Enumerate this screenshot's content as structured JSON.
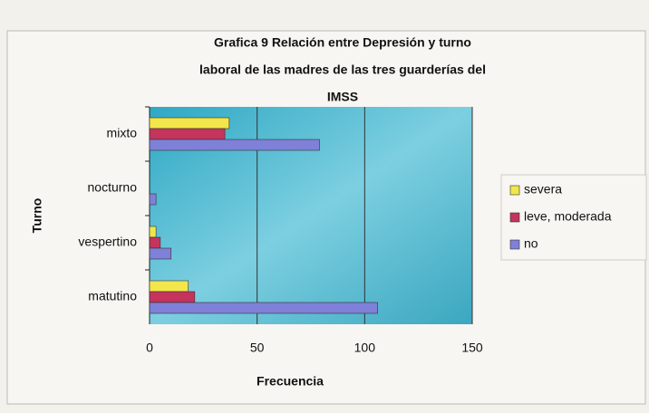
{
  "chart_data": {
    "type": "hbar",
    "title": [
      "Grafica 9 Relación entre Depresión y turno",
      "laboral  de las madres  de las tres guarderías del",
      "IMSS"
    ],
    "x_label": "Frecuencia",
    "y_label": "Turno",
    "categories": [
      "mixto",
      "nocturno",
      "vespertino",
      "matutino"
    ],
    "series": [
      {
        "name": "severa",
        "color": "#f2e64a",
        "values": [
          37,
          0,
          3,
          18
        ]
      },
      {
        "name": "leve, moderada",
        "color": "#c4345c",
        "values": [
          35,
          0,
          5,
          21
        ]
      },
      {
        "name": "no",
        "color": "#7f80d8",
        "values": [
          79,
          3,
          10,
          106
        ]
      }
    ],
    "xlim": [
      0,
      150
    ],
    "xticks": [
      0,
      50,
      100,
      150
    ],
    "grid": true,
    "legend": "right"
  }
}
